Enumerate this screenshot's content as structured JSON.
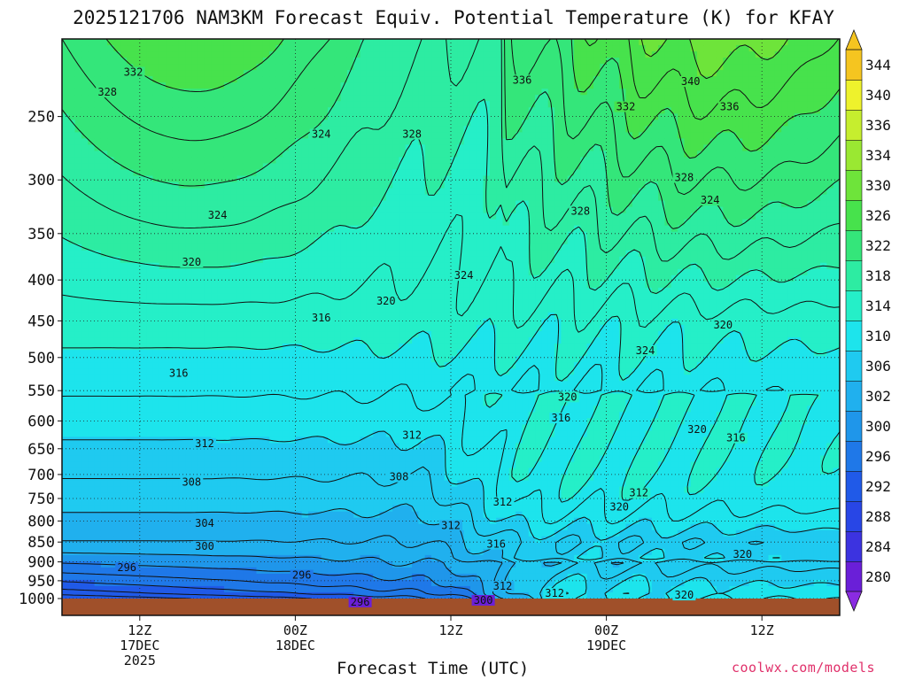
{
  "title": "2025121706 NAM3KM Forecast Equiv. Potential Temperature (K) for KFAY",
  "credit": "coolwx.com/models",
  "chart_data": {
    "type": "heatmap",
    "title": "2025121706 NAM3KM Forecast Equiv. Potential Temperature (K) for KFAY",
    "xlabel": "Forecast Time (UTC)",
    "ylabel": "",
    "x_ticks": [
      {
        "label": "12Z",
        "date": "17DEC",
        "year": "2025",
        "hour": 6
      },
      {
        "label": "00Z",
        "date": "18DEC",
        "year": "",
        "hour": 18
      },
      {
        "label": "12Z",
        "date": "",
        "year": "",
        "hour": 30
      },
      {
        "label": "00Z",
        "date": "19DEC",
        "year": "",
        "hour": 42
      },
      {
        "label": "12Z",
        "date": "",
        "year": "",
        "hour": 54
      }
    ],
    "xlim": [
      0,
      60
    ],
    "ylim": [
      1000,
      200
    ],
    "y_scale": "log-pressure",
    "y_ticks": [
      250,
      300,
      350,
      400,
      450,
      500,
      550,
      600,
      650,
      700,
      750,
      800,
      850,
      900,
      950,
      1000
    ],
    "grid": true,
    "colorbar": {
      "levels": [
        280,
        284,
        288,
        292,
        296,
        300,
        302,
        306,
        310,
        314,
        318,
        322,
        326,
        330,
        334,
        336,
        340,
        344
      ],
      "colors": [
        "#6a1fd8",
        "#3c33e0",
        "#2846e6",
        "#205ae8",
        "#1f78e8",
        "#1f96ea",
        "#20b0ee",
        "#1fcaf0",
        "#1de4ec",
        "#25efc8",
        "#2deca2",
        "#34e67a",
        "#47e24c",
        "#6ee43a",
        "#9ae832",
        "#c6ee2e",
        "#eef22c",
        "#f5c520"
      ]
    },
    "contour_labels": [
      {
        "value": "332",
        "x": 5.5,
        "p": 220
      },
      {
        "value": "328",
        "x": 3.5,
        "p": 233
      },
      {
        "value": "336",
        "x": 35.5,
        "p": 225
      },
      {
        "value": "340",
        "x": 48.5,
        "p": 226
      },
      {
        "value": "332",
        "x": 43.5,
        "p": 243
      },
      {
        "value": "336",
        "x": 51.5,
        "p": 243
      },
      {
        "value": "324",
        "x": 20,
        "p": 263
      },
      {
        "value": "328",
        "x": 27,
        "p": 263
      },
      {
        "value": "328",
        "x": 48,
        "p": 298
      },
      {
        "value": "324",
        "x": 50,
        "p": 318
      },
      {
        "value": "328",
        "x": 40,
        "p": 328
      },
      {
        "value": "324",
        "x": 12,
        "p": 332
      },
      {
        "value": "324",
        "x": 31,
        "p": 395
      },
      {
        "value": "320",
        "x": 10,
        "p": 380
      },
      {
        "value": "320",
        "x": 25,
        "p": 425
      },
      {
        "value": "316",
        "x": 20,
        "p": 446
      },
      {
        "value": "320",
        "x": 51,
        "p": 455
      },
      {
        "value": "324",
        "x": 45,
        "p": 490
      },
      {
        "value": "316",
        "x": 9,
        "p": 523
      },
      {
        "value": "320",
        "x": 39,
        "p": 560
      },
      {
        "value": "316",
        "x": 38.5,
        "p": 595
      },
      {
        "value": "320",
        "x": 49,
        "p": 615
      },
      {
        "value": "316",
        "x": 52,
        "p": 630
      },
      {
        "value": "312",
        "x": 11,
        "p": 640
      },
      {
        "value": "312",
        "x": 27,
        "p": 625
      },
      {
        "value": "308",
        "x": 10,
        "p": 715
      },
      {
        "value": "308",
        "x": 26,
        "p": 705
      },
      {
        "value": "312",
        "x": 34,
        "p": 758
      },
      {
        "value": "312",
        "x": 44.5,
        "p": 738
      },
      {
        "value": "320",
        "x": 43,
        "p": 768
      },
      {
        "value": "304",
        "x": 11,
        "p": 805
      },
      {
        "value": "312",
        "x": 30,
        "p": 810
      },
      {
        "value": "316",
        "x": 33.5,
        "p": 855
      },
      {
        "value": "300",
        "x": 11,
        "p": 860
      },
      {
        "value": "320",
        "x": 52.5,
        "p": 880
      },
      {
        "value": "296",
        "x": 5,
        "p": 915
      },
      {
        "value": "296",
        "x": 18.5,
        "p": 935
      },
      {
        "value": "312",
        "x": 34,
        "p": 965
      },
      {
        "value": "312",
        "x": 38,
        "p": 985
      },
      {
        "value": "320",
        "x": 48,
        "p": 990
      },
      {
        "value": "300",
        "x": 32.5,
        "p": 1005
      },
      {
        "value": "296",
        "x": 23,
        "p": 1010
      }
    ]
  }
}
